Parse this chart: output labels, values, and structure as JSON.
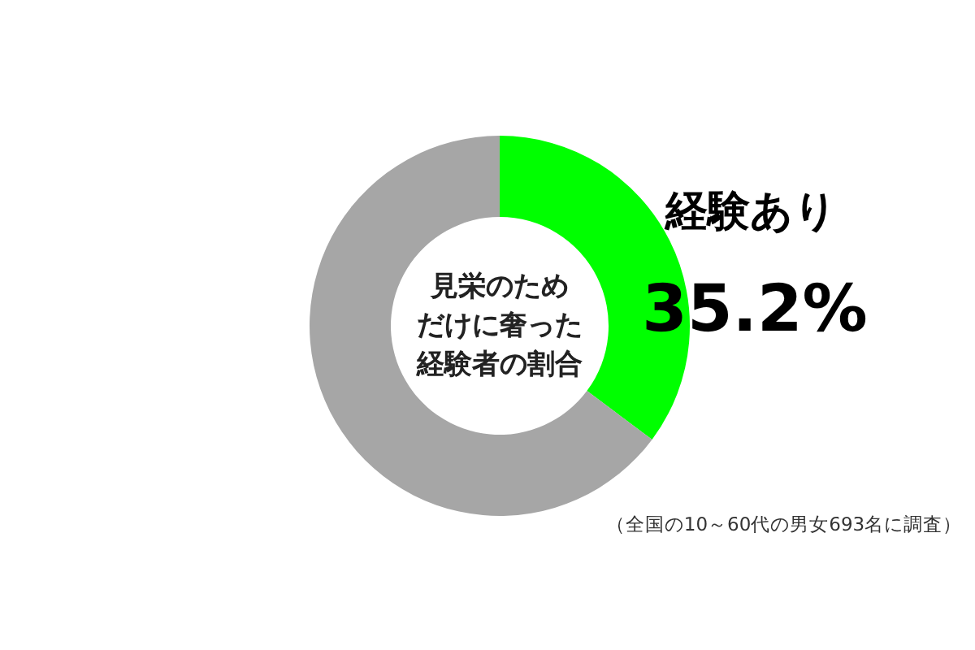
{
  "chart_data": {
    "type": "donut",
    "title": "見栄のためだけに奢った経験者の割合",
    "categories": [
      "経験あり",
      null
    ],
    "values": [
      35.2,
      64.8
    ],
    "colors": [
      "#00ff00",
      "#a6a6a6"
    ],
    "value_labels": [
      "35.2%",
      null
    ],
    "annotations": [
      "（全国の10～60代の男女693名に調査）"
    ]
  }
}
